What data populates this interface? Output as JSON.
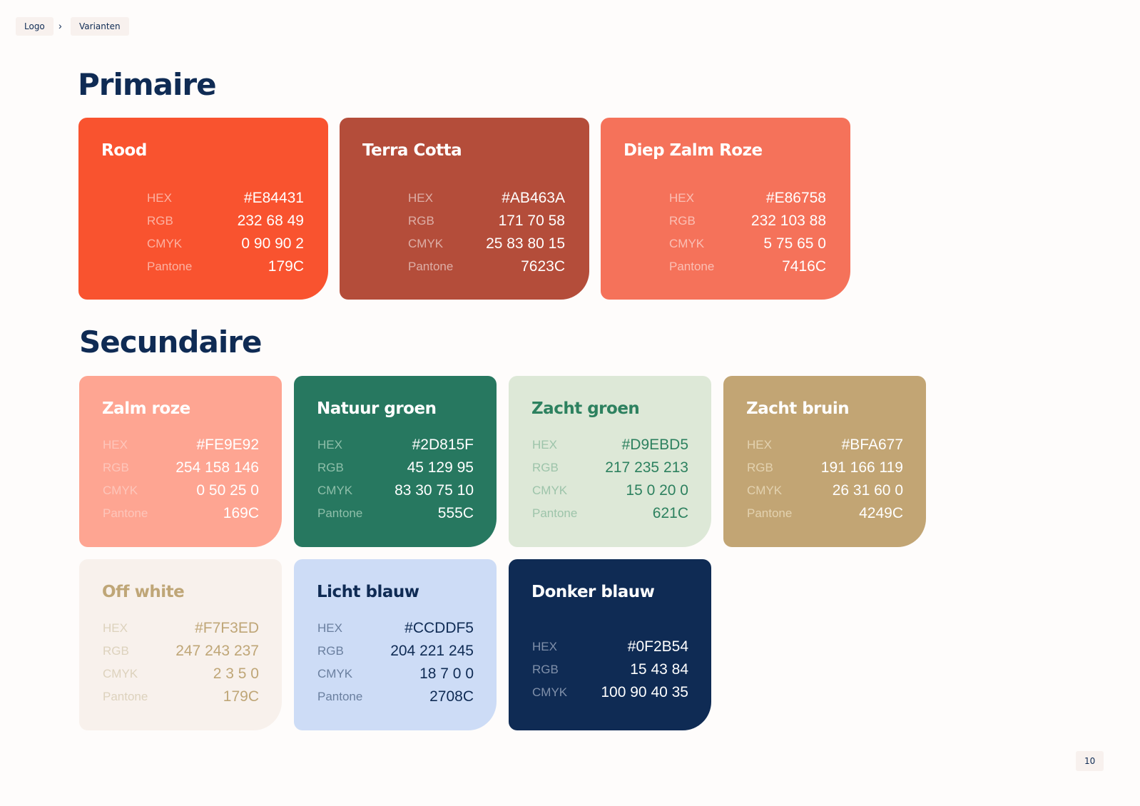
{
  "breadcrumb": [
    "Logo",
    "Varianten"
  ],
  "breadcrumb_separator": "›",
  "sections": [
    {
      "title": "Primaire",
      "cards": [
        {
          "name": "Rood",
          "rows": [
            [
              "HEX",
              "#E84431"
            ],
            [
              "RGB",
              "232 68 49"
            ],
            [
              "CMYK",
              "0 90 90 2"
            ],
            [
              "Pantone",
              "179C"
            ]
          ]
        },
        {
          "name": "Terra Cotta",
          "rows": [
            [
              "HEX",
              "#AB463A"
            ],
            [
              "RGB",
              "171 70 58"
            ],
            [
              "CMYK",
              "25 83 80 15"
            ],
            [
              "Pantone",
              "7623C"
            ]
          ]
        },
        {
          "name": "Diep Zalm Roze",
          "rows": [
            [
              "HEX",
              "#E86758"
            ],
            [
              "RGB",
              "232 103 88"
            ],
            [
              "CMYK",
              "5 75 65 0"
            ],
            [
              "Pantone",
              "7416C"
            ]
          ]
        }
      ]
    },
    {
      "title": "Secundaire",
      "cards": [
        {
          "name": "Zalm roze",
          "rows": [
            [
              "HEX",
              "#FE9E92"
            ],
            [
              "RGB",
              "254 158 146"
            ],
            [
              "CMYK",
              "0 50 25 0"
            ],
            [
              "Pantone",
              "169C"
            ]
          ]
        },
        {
          "name": "Natuur groen",
          "rows": [
            [
              "HEX",
              "#2D815F"
            ],
            [
              "RGB",
              "45 129 95"
            ],
            [
              "CMYK",
              "83 30 75 10"
            ],
            [
              "Pantone",
              "555C"
            ]
          ]
        },
        {
          "name": "Zacht groen",
          "rows": [
            [
              "HEX",
              "#D9EBD5"
            ],
            [
              "RGB",
              "217 235 213"
            ],
            [
              "CMYK",
              "15 0 20 0"
            ],
            [
              "Pantone",
              "621C"
            ]
          ]
        },
        {
          "name": "Zacht bruin",
          "rows": [
            [
              "HEX",
              "#BFA677"
            ],
            [
              "RGB",
              "191 166 119"
            ],
            [
              "CMYK",
              "26 31 60 0"
            ],
            [
              "Pantone",
              "4249C"
            ]
          ]
        },
        {
          "name": "Off white",
          "rows": [
            [
              "HEX",
              "#F7F3ED"
            ],
            [
              "RGB",
              "247 243 237"
            ],
            [
              "CMYK",
              "2 3 5 0"
            ],
            [
              "Pantone",
              "179C"
            ]
          ]
        },
        {
          "name": "Licht blauw",
          "rows": [
            [
              "HEX",
              "#CCDDF5"
            ],
            [
              "RGB",
              "204 221 245"
            ],
            [
              "CMYK",
              "18 7 0 0"
            ],
            [
              "Pantone",
              "2708C"
            ]
          ]
        },
        {
          "name": "Donker blauw",
          "rows": [
            [
              "HEX",
              "#0F2B54"
            ],
            [
              "RGB",
              "15 43 84"
            ],
            [
              "CMYK",
              "100 90 40 35"
            ]
          ]
        }
      ]
    }
  ],
  "page_number": "10"
}
